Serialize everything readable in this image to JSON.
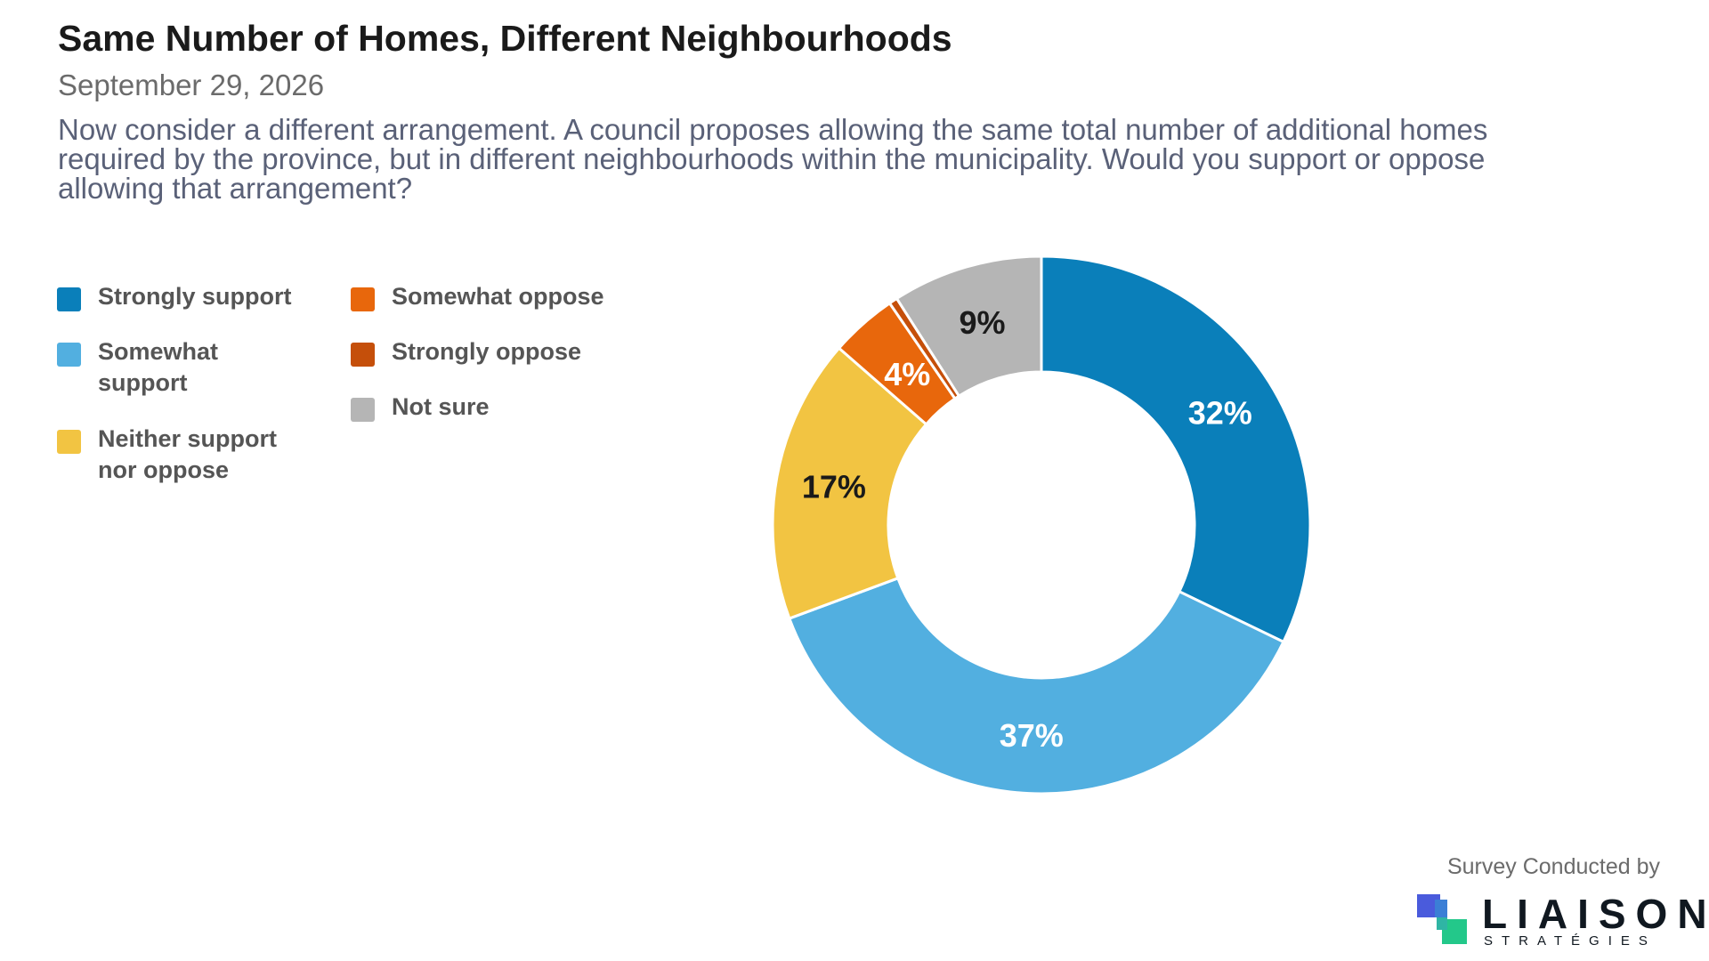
{
  "header": {
    "title": "Same Number of Homes, Different Neighbourhoods",
    "date": "September 29, 2026",
    "question": "Now consider a different arrangement. A council proposes allowing the same total number of additional homes required by the province, but in different neighbourhoods within the municipality. Would you support or oppose allowing that arrangement?"
  },
  "chart_data": {
    "type": "pie",
    "style": "donut",
    "categories": [
      "Strongly support",
      "Somewhat support",
      "Neither support nor oppose",
      "Somewhat oppose",
      "Strongly oppose",
      "Not sure"
    ],
    "values": [
      32,
      37,
      17,
      4,
      0.5,
      9
    ],
    "labels": [
      "32%",
      "37%",
      "17%",
      "4%",
      "",
      "9%"
    ],
    "colors": [
      "#0a7fba",
      "#52afe0",
      "#f2c442",
      "#e8670c",
      "#c54f0a",
      "#b5b5b5"
    ],
    "label_colors": [
      "#ffffff",
      "#ffffff",
      "#1a1a1a",
      "#ffffff",
      "#ffffff",
      "#1a1a1a"
    ],
    "legend_position": "left"
  },
  "legend": {
    "items": [
      {
        "label": "Strongly support",
        "color": "#0a7fba"
      },
      {
        "label": "Somewhat support",
        "color": "#52afe0"
      },
      {
        "label": "Neither support nor oppose",
        "color": "#f2c442"
      },
      {
        "label": "Somewhat oppose",
        "color": "#e8670c"
      },
      {
        "label": "Strongly oppose",
        "color": "#c54f0a"
      },
      {
        "label": "Not sure",
        "color": "#b5b5b5"
      }
    ]
  },
  "footer": {
    "credit": "Survey Conducted by",
    "logo_name": "LIAISON",
    "logo_sub": "STRATÉGIES"
  }
}
